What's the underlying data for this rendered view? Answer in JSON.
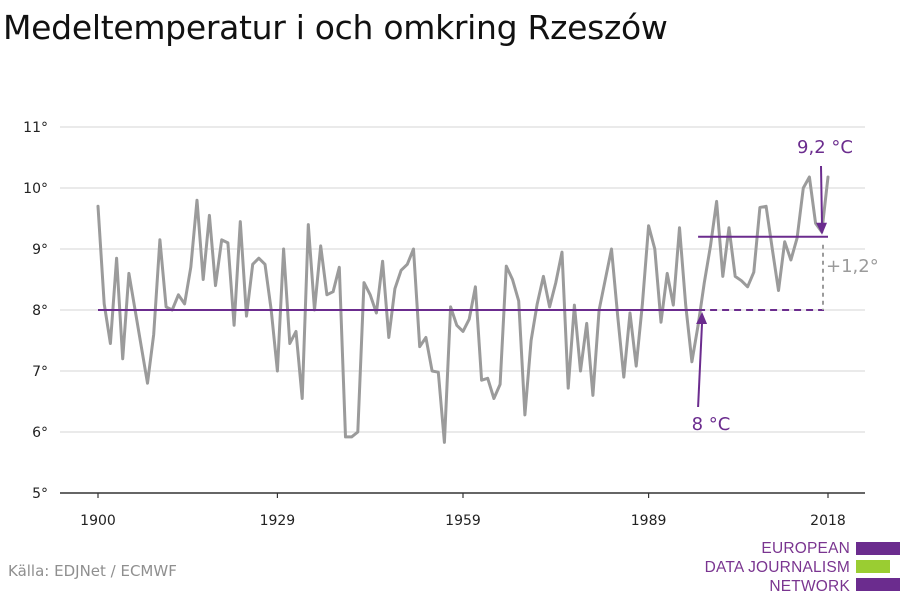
{
  "title": "Medeltemperatur i och omkring Rzeszów",
  "source": "Källa: EDJNet / ECMWF",
  "logo": {
    "lines": [
      "EUROPEAN",
      "DATA JOURNALISM",
      "NETWORK"
    ],
    "colors": {
      "primary": "#6b2c8e",
      "accent": "#9acd32"
    }
  },
  "colors": {
    "series": "#9b9b9b",
    "reference": "#6b2c8e",
    "delta": "#9b9b9b",
    "grid": "#dddddd"
  },
  "chart_data": {
    "type": "line",
    "title": "Medeltemperatur i och omkring Rzeszów",
    "xlabel": "",
    "ylabel": "",
    "xlim": [
      1900,
      2018
    ],
    "ylim": [
      5,
      11
    ],
    "x_ticks": [
      {
        "value": 1900,
        "label": "1900"
      },
      {
        "value": 1929,
        "label": "1929"
      },
      {
        "value": 1959,
        "label": "1959"
      },
      {
        "value": 1989,
        "label": "1989"
      },
      {
        "value": 2018,
        "label": "2018"
      }
    ],
    "y_ticks": [
      {
        "value": 5,
        "label": "5°"
      },
      {
        "value": 6,
        "label": "6°"
      },
      {
        "value": 7,
        "label": "7°"
      },
      {
        "value": 8,
        "label": "8°"
      },
      {
        "value": 9,
        "label": "9°"
      },
      {
        "value": 10,
        "label": "10°"
      },
      {
        "value": 11,
        "label": "11°"
      }
    ],
    "grid": true,
    "series": [
      {
        "name": "",
        "x": [
          1900,
          1901,
          1902,
          1903,
          1904,
          1905,
          1906,
          1907,
          1908,
          1909,
          1910,
          1911,
          1912,
          1913,
          1914,
          1915,
          1916,
          1917,
          1918,
          1919,
          1920,
          1921,
          1922,
          1923,
          1924,
          1925,
          1926,
          1927,
          1928,
          1929,
          1930,
          1931,
          1932,
          1933,
          1934,
          1935,
          1936,
          1937,
          1938,
          1939,
          1940,
          1941,
          1942,
          1943,
          1944,
          1945,
          1946,
          1947,
          1948,
          1949,
          1950,
          1951,
          1952,
          1953,
          1954,
          1955,
          1956,
          1957,
          1958,
          1959,
          1960,
          1961,
          1962,
          1963,
          1964,
          1965,
          1966,
          1967,
          1968,
          1969,
          1970,
          1971,
          1972,
          1973,
          1974,
          1975,
          1976,
          1977,
          1978,
          1979,
          1980,
          1981,
          1982,
          1983,
          1984,
          1985,
          1986,
          1987,
          1988,
          1989,
          1990,
          1991,
          1992,
          1993,
          1994,
          1995,
          1996,
          1997,
          1998,
          1999,
          2000,
          2001,
          2002,
          2003,
          2004,
          2005,
          2006,
          2007,
          2008,
          2009,
          2010,
          2011,
          2012,
          2013,
          2014,
          2015,
          2016,
          2017,
          2018
        ],
        "values": [
          9.7,
          8.1,
          7.45,
          8.85,
          7.2,
          8.6,
          8.0,
          7.4,
          6.8,
          7.6,
          9.15,
          8.05,
          8.0,
          8.25,
          8.1,
          8.7,
          9.8,
          8.5,
          9.55,
          8.4,
          9.15,
          9.1,
          7.75,
          9.45,
          7.9,
          8.75,
          8.85,
          8.75,
          8.0,
          7.0,
          9.0,
          7.45,
          7.65,
          6.55,
          9.4,
          8.0,
          9.05,
          8.25,
          8.3,
          8.7,
          5.92,
          5.92,
          6.0,
          8.45,
          8.25,
          7.95,
          8.8,
          7.55,
          8.35,
          8.65,
          8.75,
          9.0,
          7.4,
          7.55,
          7.0,
          6.98,
          5.83,
          8.05,
          7.75,
          7.65,
          7.85,
          8.38,
          6.85,
          6.88,
          6.55,
          6.78,
          8.72,
          8.5,
          8.15,
          6.28,
          7.5,
          8.1,
          8.55,
          8.05,
          8.45,
          8.95,
          6.72,
          8.08,
          7.0,
          7.78,
          6.6,
          8.0,
          8.5,
          9.0,
          7.9,
          6.9,
          7.95,
          7.08,
          8.1,
          9.38,
          9.0,
          7.8,
          8.6,
          8.08,
          9.35,
          8.08,
          7.15,
          7.75,
          8.45,
          9.05,
          9.78,
          8.55,
          9.35,
          8.55,
          8.48,
          8.38,
          8.62,
          9.68,
          9.7,
          9.0,
          8.32,
          9.12,
          8.82,
          9.18,
          10.0,
          10.18,
          9.42,
          9.28,
          10.18
        ]
      }
    ],
    "annotations": [
      {
        "label": "8 °C",
        "value": 8.0
      },
      {
        "label": "9,2 °C",
        "value": 9.2
      },
      {
        "label": "+1,2°",
        "value": 1.2
      }
    ]
  }
}
